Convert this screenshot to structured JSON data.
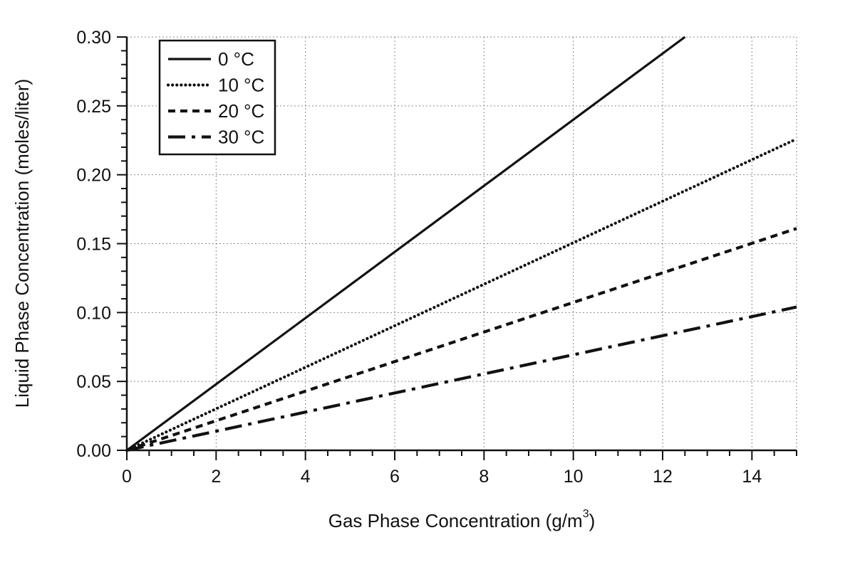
{
  "chart_data": {
    "type": "line",
    "title": "",
    "xlabel": "Gas Phase Concentration (g/m",
    "xlabel_superscript": "3",
    "xlabel_suffix": ")",
    "ylabel": "Liquid Phase Concentration (moles/liter)",
    "xlim": [
      0,
      15
    ],
    "ylim": [
      0,
      0.3
    ],
    "x_ticks": [
      0,
      2,
      4,
      6,
      8,
      10,
      12,
      14
    ],
    "x_tick_labels": [
      "0",
      "2",
      "4",
      "6",
      "8",
      "10",
      "12",
      "14"
    ],
    "y_ticks": [
      0,
      0.05,
      0.1,
      0.15,
      0.2,
      0.25,
      0.3
    ],
    "y_tick_labels": [
      "0.00",
      "0.05",
      "0.10",
      "0.15",
      "0.20",
      "0.25",
      "0.30"
    ],
    "grid": true,
    "legend_position": "top-left",
    "series": [
      {
        "name": "0 °C",
        "style": "solid",
        "x": [
          0,
          12.5
        ],
        "y": [
          0,
          0.3
        ]
      },
      {
        "name": "10 °C",
        "style": "dotted",
        "x": [
          0,
          15
        ],
        "y": [
          0,
          0.226
        ]
      },
      {
        "name": "20 °C",
        "style": "dashed",
        "x": [
          0,
          15
        ],
        "y": [
          0,
          0.161
        ]
      },
      {
        "name": "30 °C",
        "style": "dash-dot",
        "x": [
          0,
          15
        ],
        "y": [
          0,
          0.104
        ]
      }
    ]
  }
}
